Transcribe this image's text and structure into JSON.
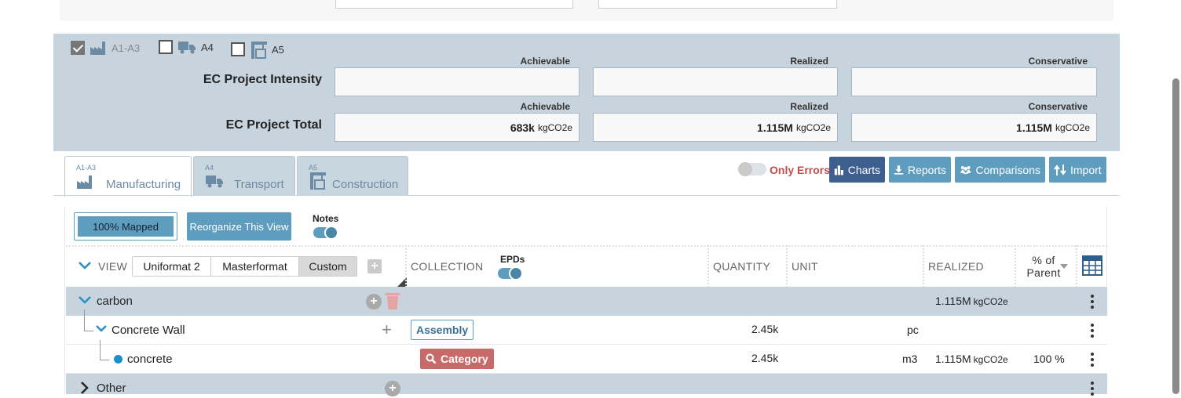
{
  "phases": [
    {
      "code": "A1-A3",
      "checked": true
    },
    {
      "code": "A4",
      "checked": false
    },
    {
      "code": "A5",
      "checked": false
    }
  ],
  "intensity": {
    "label": "EC Project Intensity",
    "columns": [
      "Achievable",
      "Realized",
      "Conservative"
    ],
    "values": [
      "",
      "",
      ""
    ]
  },
  "total": {
    "label": "EC Project Total",
    "columns": [
      "Achievable",
      "Realized",
      "Conservative"
    ],
    "values": [
      "683k",
      "1.115M",
      "1.115M"
    ],
    "unit": "kgCO2e"
  },
  "tabs": [
    {
      "sup": "A1-A3",
      "label": "Manufacturing",
      "icon": "factory-icon",
      "active": true
    },
    {
      "sup": "A4",
      "label": "Transport",
      "icon": "truck-icon",
      "active": false
    },
    {
      "sup": "A5",
      "label": "Construction",
      "icon": "crane-icon",
      "active": false
    }
  ],
  "toolbar": {
    "only_errors": "Only Errors",
    "charts": "Charts",
    "reports": "Reports",
    "comparisons": "Comparisons",
    "import": "Import"
  },
  "mapping": {
    "mapped": "100% Mapped",
    "reorganize": "Reorganize This View",
    "notes": "Notes"
  },
  "view": {
    "label": "VIEW",
    "options": [
      "Uniformat 2",
      "Masterformat",
      "Custom"
    ],
    "selected": "Custom"
  },
  "columns": {
    "collection": "COLLECTION",
    "epds": "EPDs",
    "quantity": "QUANTITY",
    "unit": "UNIT",
    "realized": "REALIZED",
    "pct_parent": "% of Parent"
  },
  "rows": [
    {
      "name": "carbon",
      "collection": "",
      "quantity": "",
      "unit": "",
      "realized": "1.115M",
      "realized_unit": "kgCO2e",
      "pct": ""
    },
    {
      "name": "Concrete Wall",
      "collection": "Assembly",
      "quantity": "2.45k",
      "unit": "pc",
      "realized": "",
      "realized_unit": "",
      "pct": ""
    },
    {
      "name": "concrete",
      "collection": "Category",
      "quantity": "2.45k",
      "unit": "m3",
      "realized": "1.115M",
      "realized_unit": "kgCO2e",
      "pct": "100 %"
    },
    {
      "name": "Other",
      "collection": "",
      "quantity": "",
      "unit": "",
      "realized": "",
      "realized_unit": "",
      "pct": ""
    }
  ],
  "colors": {
    "panel": "#c7d4de",
    "accent_light": "#5f9dbf",
    "accent_dark": "#3d5f8f",
    "error": "#c0504d",
    "category": "#c96a6a"
  }
}
